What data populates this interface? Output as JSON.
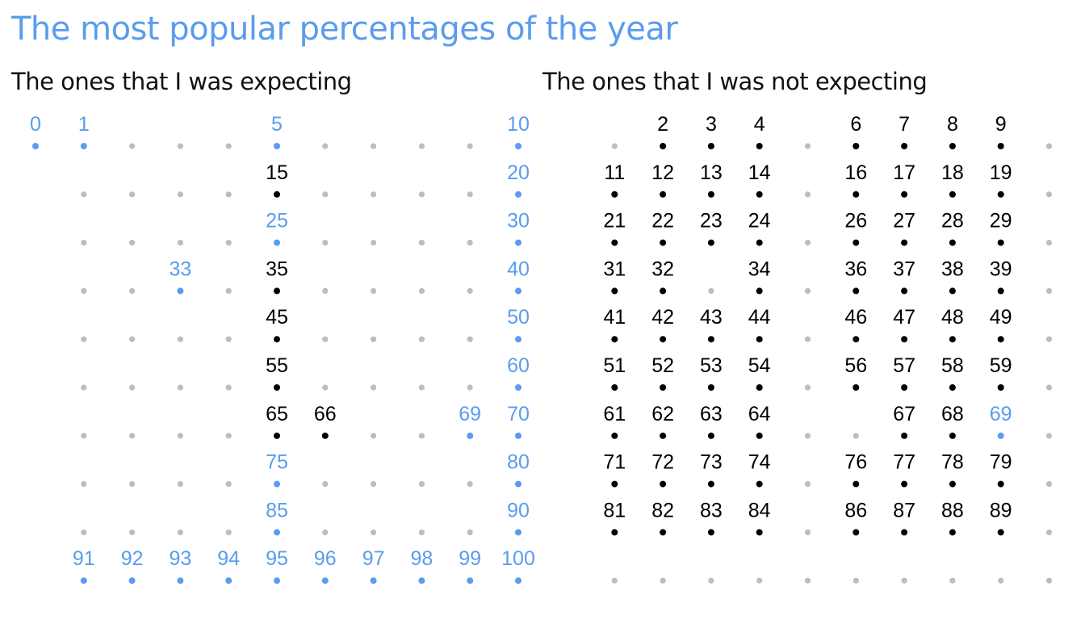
{
  "title": "The most popular percentages of the year",
  "subtitle_left": "The ones that I was expecting",
  "subtitle_right": "The ones that I was not expecting",
  "colors": {
    "title": "#5a9ced",
    "expected": "#5a9ced",
    "unexpected": "#000000",
    "inactive_dot": "#bdbdbd"
  },
  "chart_data": {
    "type": "scatter",
    "grid_range": [
      0,
      100
    ],
    "expected_values": [
      0,
      1,
      5,
      10,
      20,
      25,
      30,
      33,
      40,
      50,
      60,
      69,
      70,
      75,
      80,
      85,
      90,
      91,
      92,
      93,
      94,
      95,
      96,
      97,
      98,
      99,
      100
    ],
    "unexpected_left_values": [
      15,
      35,
      45,
      55,
      65,
      66
    ],
    "unexpected_right_values": [
      2,
      3,
      4,
      6,
      7,
      8,
      9,
      11,
      12,
      13,
      14,
      16,
      17,
      18,
      19,
      21,
      22,
      23,
      24,
      26,
      27,
      28,
      29,
      31,
      32,
      34,
      36,
      37,
      38,
      39,
      41,
      42,
      43,
      44,
      46,
      47,
      48,
      49,
      51,
      52,
      53,
      54,
      56,
      57,
      58,
      59,
      61,
      62,
      63,
      64,
      67,
      68,
      71,
      72,
      73,
      74,
      76,
      77,
      78,
      79,
      81,
      82,
      83,
      84,
      86,
      87,
      88,
      89
    ]
  }
}
